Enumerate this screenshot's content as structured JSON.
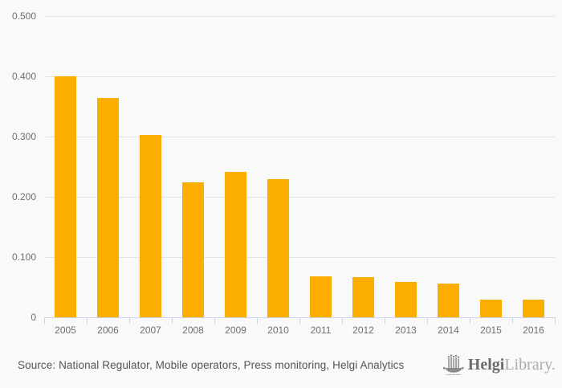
{
  "chart_data": {
    "type": "bar",
    "title": "",
    "xlabel": "",
    "ylabel": "",
    "categories": [
      "2005",
      "2006",
      "2007",
      "2008",
      "2009",
      "2010",
      "2011",
      "2012",
      "2013",
      "2014",
      "2015",
      "2016"
    ],
    "values": [
      0.4,
      0.364,
      0.302,
      0.224,
      0.241,
      0.229,
      0.068,
      0.067,
      0.058,
      0.056,
      0.029,
      0.029
    ],
    "ylim": [
      0,
      0.5
    ],
    "yticks": [
      {
        "value": 0.0,
        "label": "0"
      },
      {
        "value": 0.1,
        "label": "0.100"
      },
      {
        "value": 0.2,
        "label": "0.200"
      },
      {
        "value": 0.3,
        "label": "0.300"
      },
      {
        "value": 0.4,
        "label": "0.400"
      },
      {
        "value": 0.5,
        "label": "0.500"
      }
    ],
    "grid": true,
    "legend_position": "none",
    "bar_color": "#FBAE00"
  },
  "colors": {
    "background": "#f9f9f9",
    "gridline": "#e4e4e4",
    "axis": "#ccd4e8",
    "tick_label": "#707070",
    "bar": "#FBAE00",
    "source_text": "#545454",
    "logo_dark": "#6a6a6a",
    "logo_light": "#ababab",
    "logo_icon": "#8c8c8c"
  },
  "footer": {
    "source_text": "Source: National Regulator, Mobile operators, Press monitoring, Helgi Analytics",
    "logo": {
      "icon": "helgi-bars-boat-icon",
      "brand_bold": "Helgi",
      "brand_light": "Library."
    }
  }
}
